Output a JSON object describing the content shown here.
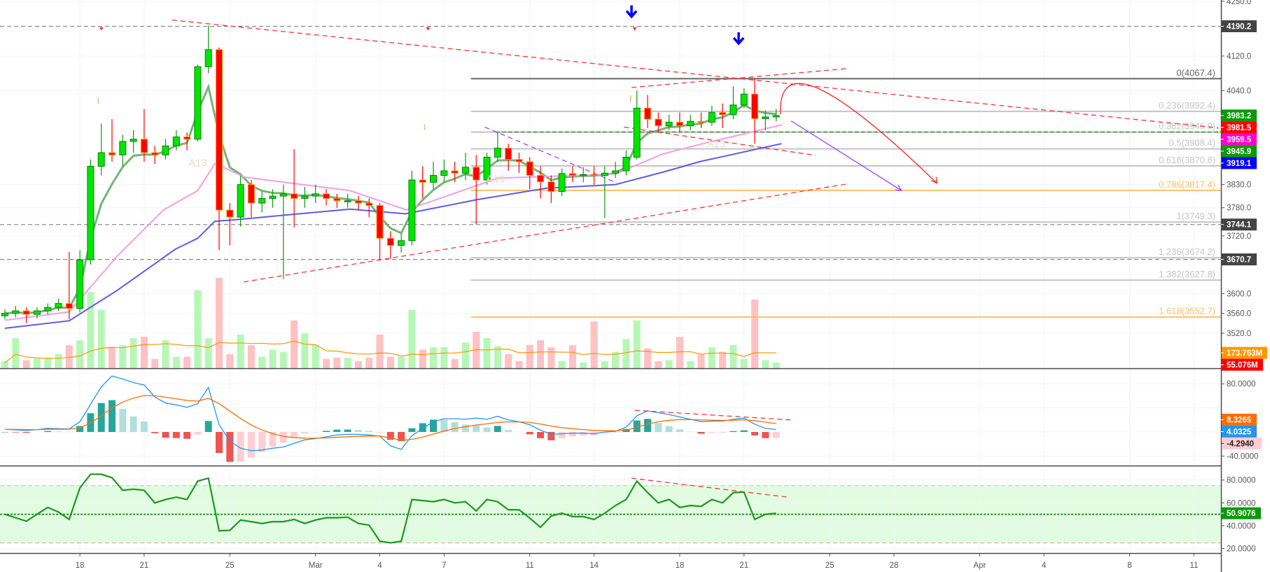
{
  "chart_data": {
    "type": "candlestick",
    "interval_note": "",
    "price_axis": {
      "scale": "log",
      "ticks": [
        "4250.0",
        "4120.0",
        "4040.0",
        "3830.0",
        "3780.0",
        "3720.0",
        "3600.0",
        "3560.0",
        "3520.0"
      ],
      "tick_values": [
        4250,
        4120,
        4040,
        3830,
        3780,
        3720,
        3600,
        3560,
        3520
      ]
    },
    "time_axis": {
      "ticks": [
        {
          "label": "18",
          "bar": 7
        },
        {
          "label": "21",
          "bar": 13
        },
        {
          "label": "25",
          "bar": 21
        },
        {
          "label": "Mar",
          "bar": 29
        },
        {
          "label": "4",
          "bar": 35
        },
        {
          "label": "7",
          "bar": 41
        },
        {
          "label": "11",
          "bar": 49
        },
        {
          "label": "14",
          "bar": 55
        },
        {
          "label": "18",
          "bar": 63
        },
        {
          "label": "21",
          "bar": 69
        },
        {
          "label": "25",
          "bar": 77
        },
        {
          "label": "28",
          "bar": 83
        },
        {
          "label": "Apr",
          "bar": 91
        },
        {
          "label": "4",
          "bar": 97
        },
        {
          "label": "8",
          "bar": 105
        },
        {
          "label": "11",
          "bar": 111
        }
      ]
    },
    "candles_ohlc": [
      [
        3555,
        3568,
        3548,
        3560
      ],
      [
        3560,
        3575,
        3552,
        3565
      ],
      [
        3565,
        3572,
        3540,
        3558
      ],
      [
        3558,
        3572,
        3550,
        3565
      ],
      [
        3565,
        3580,
        3558,
        3572
      ],
      [
        3572,
        3590,
        3565,
        3580
      ],
      [
        3580,
        3686,
        3548,
        3570
      ],
      [
        3570,
        3690,
        3562,
        3670
      ],
      [
        3670,
        3885,
        3660,
        3870
      ],
      [
        3870,
        3965,
        3850,
        3900
      ],
      [
        3900,
        3975,
        3880,
        3895
      ],
      [
        3895,
        3940,
        3870,
        3925
      ],
      [
        3925,
        3950,
        3900,
        3930
      ],
      [
        3930,
        3998,
        3880,
        3900
      ],
      [
        3900,
        3915,
        3875,
        3895
      ],
      [
        3895,
        3930,
        3885,
        3915
      ],
      [
        3915,
        3950,
        3905,
        3935
      ],
      [
        3935,
        3945,
        3905,
        3930
      ],
      [
        3930,
        4100,
        3925,
        4095
      ],
      [
        4095,
        4192,
        4080,
        4135
      ],
      [
        4135,
        4140,
        3690,
        3775
      ],
      [
        3775,
        3790,
        3700,
        3760
      ],
      [
        3760,
        3850,
        3740,
        3830
      ],
      [
        3830,
        3840,
        3760,
        3790
      ],
      [
        3790,
        3815,
        3770,
        3800
      ],
      [
        3800,
        3820,
        3780,
        3805
      ],
      [
        3805,
        3830,
        3630,
        3810
      ],
      [
        3810,
        3908,
        3738,
        3800
      ],
      [
        3800,
        3825,
        3780,
        3805
      ],
      [
        3805,
        3830,
        3790,
        3810
      ],
      [
        3810,
        3820,
        3785,
        3800
      ],
      [
        3800,
        3810,
        3780,
        3795
      ],
      [
        3795,
        3810,
        3780,
        3795
      ],
      [
        3795,
        3805,
        3775,
        3790
      ],
      [
        3790,
        3800,
        3760,
        3785
      ],
      [
        3785,
        3790,
        3670,
        3715
      ],
      [
        3715,
        3730,
        3672,
        3700
      ],
      [
        3700,
        3725,
        3685,
        3710
      ],
      [
        3710,
        3860,
        3700,
        3840
      ],
      [
        3840,
        3870,
        3800,
        3835
      ],
      [
        3835,
        3880,
        3820,
        3850
      ],
      [
        3850,
        3885,
        3835,
        3860
      ],
      [
        3860,
        3880,
        3835,
        3855
      ],
      [
        3855,
        3900,
        3840,
        3868
      ],
      [
        3868,
        3895,
        3745,
        3840
      ],
      [
        3840,
        3900,
        3830,
        3890
      ],
      [
        3890,
        3945,
        3880,
        3910
      ],
      [
        3910,
        3920,
        3860,
        3885
      ],
      [
        3885,
        3900,
        3855,
        3880
      ],
      [
        3880,
        3890,
        3820,
        3850
      ],
      [
        3850,
        3870,
        3800,
        3836
      ],
      [
        3836,
        3850,
        3790,
        3815
      ],
      [
        3815,
        3865,
        3805,
        3854
      ],
      [
        3854,
        3870,
        3835,
        3850
      ],
      [
        3850,
        3868,
        3835,
        3852
      ],
      [
        3852,
        3870,
        3830,
        3850
      ],
      [
        3850,
        3870,
        3758,
        3855
      ],
      [
        3855,
        3880,
        3845,
        3860
      ],
      [
        3860,
        3905,
        3850,
        3890
      ],
      [
        3890,
        4040,
        3885,
        4000
      ],
      [
        4000,
        4030,
        3955,
        3975
      ],
      [
        3975,
        3990,
        3945,
        3960
      ],
      [
        3960,
        3985,
        3950,
        3968
      ],
      [
        3968,
        3990,
        3945,
        3960
      ],
      [
        3960,
        3985,
        3950,
        3970
      ],
      [
        3970,
        3990,
        3955,
        3968
      ],
      [
        3968,
        4005,
        3960,
        3990
      ],
      [
        3990,
        4010,
        3955,
        3985
      ],
      [
        3985,
        4050,
        3975,
        4007
      ],
      [
        4007,
        4045,
        4000,
        4032
      ],
      [
        4032,
        4068,
        3920,
        3976
      ],
      [
        3976,
        3995,
        3950,
        3980
      ],
      [
        3980,
        3998,
        3970,
        3983
      ]
    ],
    "volume_millions": [
      80,
      340,
      90,
      110,
      120,
      160,
      260,
      316,
      860,
      660,
      240,
      260,
      340,
      355,
      105,
      316,
      130,
      130,
      880,
      340,
      1020,
      160,
      380,
      260,
      130,
      210,
      185,
      540,
      395,
      260,
      105,
      120,
      120,
      80,
      120,
      380,
      130,
      130,
      660,
      210,
      237,
      237,
      105,
      290,
      410,
      340,
      250,
      160,
      80,
      263,
      316,
      237,
      80,
      260,
      66,
      527,
      80,
      185,
      330,
      540,
      224,
      80,
      90,
      355,
      80,
      160,
      237,
      185,
      263,
      105,
      776,
      90,
      66
    ],
    "moving_averages": [
      {
        "color": "#5aa85e",
        "kind": "fast-ema"
      },
      {
        "color": "#f59ee0",
        "points": [
          [
            0,
            3546
          ],
          [
            6,
            3563
          ],
          [
            10.5,
            3678
          ],
          [
            14.8,
            3775
          ],
          [
            18,
            3817
          ],
          [
            19.6,
            3876
          ],
          [
            22.4,
            3846
          ],
          [
            32.2,
            3817
          ],
          [
            37.5,
            3775
          ],
          [
            46,
            3844
          ],
          [
            57,
            3853
          ],
          [
            61.4,
            3897
          ],
          [
            65,
            3919
          ],
          [
            72.5,
            3962
          ]
        ]
      },
      {
        "color": "#5b5bf0",
        "points": [
          [
            0,
            3530
          ],
          [
            6,
            3545
          ],
          [
            10.5,
            3607
          ],
          [
            15.9,
            3692
          ],
          [
            18,
            3715
          ],
          [
            19.6,
            3751
          ],
          [
            21.3,
            3754
          ],
          [
            32.2,
            3777
          ],
          [
            37.4,
            3767
          ],
          [
            44,
            3797
          ],
          [
            50.5,
            3822
          ],
          [
            57,
            3830
          ],
          [
            61.4,
            3857
          ],
          [
            65,
            3881
          ],
          [
            72.5,
            3920
          ]
        ]
      }
    ],
    "horizontal_lines": [
      {
        "price": 4190.2,
        "color": "#777777"
      },
      {
        "price": 3744.1,
        "color": "#777777"
      },
      {
        "price": 3670.7,
        "color": "#777777"
      }
    ],
    "green_dashed_level": {
      "price": 3945.9,
      "from_bar": 45.8,
      "color": "#1a8a1a"
    },
    "fibonacci": {
      "from_bar": 43.5,
      "levels": [
        {
          "label": "0(4067.4)",
          "price": 4067.4,
          "color": "#666666"
        },
        {
          "label": "0.236(3992.4)",
          "price": 3992.4,
          "color": "#c4c4c4"
        },
        {
          "label": "0.382(3945.9)",
          "price": 3945.9,
          "color": "#c4c4c4"
        },
        {
          "label": "0.5(3908.4)",
          "price": 3908.4,
          "color": "#c4c4c4"
        },
        {
          "label": "0.618(3870.8)",
          "price": 3870.8,
          "color": "#c4c4c4"
        },
        {
          "label": "0.786(3817.4)",
          "price": 3817.4,
          "color": "#ffbf66"
        },
        {
          "label": "1(3749.3)",
          "price": 3749.3,
          "color": "#c4c4c4"
        },
        {
          "label": "1.236(3674.2)",
          "price": 3674.2,
          "color": "#c4c4c4"
        },
        {
          "label": "1.382(3627.8)",
          "price": 3627.8,
          "color": "#c4c4c4"
        },
        {
          "label": "1.618(3552.7)",
          "price": 3552.7,
          "color": "#ffbf66"
        }
      ]
    },
    "trendlines": [
      {
        "from": [
          15.6,
          4205
        ],
        "to": [
          113.3,
          3955
        ],
        "color": "#ff3030"
      },
      {
        "from": [
          22.3,
          3624
        ],
        "to": [
          78.8,
          3832
        ],
        "color": "#ff3030"
      },
      {
        "from": [
          58.5,
          4047
        ],
        "to": [
          78.8,
          4091
        ],
        "color": "#ff3030"
      },
      {
        "from": [
          57.8,
          3957
        ],
        "to": [
          75.7,
          3894
        ],
        "color": "#ff3030"
      },
      {
        "from": [
          44.8,
          3957
        ],
        "to": [
          57.1,
          3834
        ],
        "color": "#a040ff"
      }
    ],
    "projections": [
      {
        "type": "arc",
        "from": [
          72.4,
          3986
        ],
        "peak": [
          75.9,
          4045
        ],
        "to": [
          87,
          3833
        ],
        "color": "#ff2020"
      },
      {
        "type": "arrow",
        "from": [
          73.4,
          3971
        ],
        "to": [
          83.7,
          3817
        ],
        "color": "#a040ff"
      }
    ],
    "signals": [
      {
        "type": "down-arrow",
        "bar": 58.5,
        "price": 4225,
        "color": "#0000ff"
      },
      {
        "type": "down-arrow",
        "bar": 68.5,
        "price": 4161,
        "color": "#0000ff"
      },
      {
        "type": "small-triangle",
        "bar": 9,
        "price": 4183,
        "color": "#ff3030"
      },
      {
        "type": "small-triangle",
        "bar": 39.5,
        "price": 4183,
        "color": "#ff3030"
      },
      {
        "type": "small-triangle",
        "bar": 58.8,
        "price": 4183,
        "color": "#ff3030"
      }
    ],
    "annotations": [
      {
        "text": "A13",
        "bar": 18,
        "price": 3870,
        "color": "#e3dcc8"
      },
      {
        "text": "A13",
        "bar": 45.8,
        "price": 3835,
        "color": "#e3dcc8"
      },
      {
        "text": "A13",
        "bar": 66.4,
        "price": 3912,
        "color": "#e3dcc8"
      },
      {
        "text": "I",
        "bar": 8.7,
        "price": 4010,
        "color": "#f5a35c"
      },
      {
        "text": "I",
        "bar": 39.2,
        "price": 3950,
        "color": "#f5a35c"
      },
      {
        "text": "I",
        "bar": 58.4,
        "price": 4015,
        "color": "#f5a35c"
      }
    ],
    "macd": {
      "macd_color": "#2196f3",
      "signal_color": "#ff6d00",
      "ticks": [
        "80.0000",
        "-40.0000"
      ],
      "tick_values": [
        80,
        -40
      ],
      "values": [
        4.5,
        3.5,
        2.5,
        4,
        6,
        5.5,
        5,
        17,
        46,
        75,
        93,
        88,
        82,
        78,
        58,
        48,
        45,
        41,
        47,
        74,
        12,
        -15,
        -27,
        -31,
        -30,
        -27,
        -25,
        -19,
        -13,
        -11,
        -8,
        -5,
        -4,
        -4,
        -5,
        -7,
        -23,
        -29,
        -6,
        6,
        17,
        22,
        22,
        21,
        23,
        21,
        26,
        20,
        17,
        12,
        3,
        -4,
        -3,
        -2,
        -2,
        -3,
        0,
        1,
        8,
        27,
        35,
        32,
        29,
        25,
        21,
        17,
        18,
        18,
        21,
        23,
        13,
        6,
        4.03
      ],
      "trendline": {
        "from": [
          58.8,
          36
        ],
        "to": [
          73.4,
          20
        ],
        "color": "#ff3030"
      }
    },
    "rsi": {
      "color": "#1a9a1a",
      "ticks": [
        "80.0000",
        "60.0000",
        "40.0000",
        "20.0000"
      ],
      "tick_values": [
        80,
        60,
        40,
        20
      ],
      "band": [
        25,
        75
      ],
      "values": [
        50,
        47,
        44,
        50,
        56,
        52,
        45.5,
        73,
        85,
        85,
        82,
        71,
        72,
        71,
        60,
        63,
        65,
        63,
        79,
        81.6,
        35.6,
        36,
        45,
        43.6,
        42,
        43.6,
        43.6,
        45.5,
        42,
        45,
        47,
        47,
        47.5,
        42,
        40.5,
        26.5,
        25,
        26.5,
        63,
        62,
        61,
        63,
        60,
        61,
        53,
        63,
        61,
        54,
        54,
        46.7,
        38.7,
        48.5,
        51,
        48,
        48,
        45.5,
        51,
        57.7,
        63,
        79,
        69,
        60,
        63,
        56,
        57.7,
        57,
        63,
        60,
        69,
        69.4,
        45.5,
        50,
        50.9
      ],
      "trendline": {
        "from": [
          58.5,
          81.6
        ],
        "to": [
          73.1,
          65
        ],
        "color": "#ff3030"
      }
    },
    "price_labels": [
      {
        "text": "4190.2",
        "price": 4190.2,
        "bg": "#444444",
        "fg": "#ffffff"
      },
      {
        "text": "3983.2",
        "price": 3983.2,
        "bg": "#089a08",
        "fg": "#ffffff"
      },
      {
        "text": "3981.5",
        "price": 3981.5,
        "bg": "#ff0000",
        "fg": "#ffffff"
      },
      {
        "text": "3959.5",
        "price": 3959.5,
        "bg": "#ff00cc",
        "fg": "#ffffff"
      },
      {
        "text": "3945.9",
        "price": 3945.9,
        "bg": "#089a08",
        "fg": "#ffffff"
      },
      {
        "text": "3919.1",
        "price": 3919.1,
        "bg": "#0000ff",
        "fg": "#ffffff"
      },
      {
        "text": "3744.1",
        "price": 3744.1,
        "bg": "#444444",
        "fg": "#ffffff"
      },
      {
        "text": "3670.7",
        "price": 3670.7,
        "bg": "#444444",
        "fg": "#ffffff"
      }
    ],
    "volume_labels": [
      {
        "text": "173.763M",
        "bg": "#ff9800",
        "fg": "#ffffff"
      },
      {
        "text": "55.076M",
        "bg": "#ff0000",
        "fg": "#ffffff"
      }
    ],
    "macd_labels": [
      {
        "text": "8.3265",
        "value": 8.3265,
        "bg": "#ff6d00",
        "fg": "#ffffff"
      },
      {
        "text": "4.0325",
        "value": 4.0325,
        "bg": "#2196f3",
        "fg": "#ffffff"
      },
      {
        "text": "-4.2940",
        "value": -4.294,
        "bg": "#ffcdd2",
        "fg": "#222222"
      }
    ],
    "rsi_label": {
      "text": "50.9076",
      "value": 50.9076,
      "bg": "#089a08",
      "fg": "#ffffff"
    },
    "colors": {
      "up": "#00e600",
      "up_border": "#0a7d0a",
      "down": "#ff0000",
      "down_border": "#ff9800",
      "vol_up": "#b6f7b6",
      "vol_down": "#ffc1c1",
      "vol_ma": "#ff9800",
      "grid": "#f0f3fa",
      "axis": "#555555"
    }
  }
}
